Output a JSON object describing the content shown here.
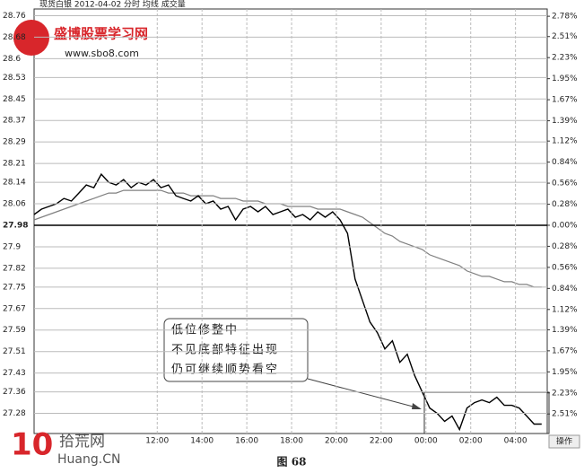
{
  "chart_data": {
    "type": "line",
    "title": "现货白银  2012-04-02 分时 均线 成交量",
    "x": [
      "06:30",
      "06:50",
      "07:10",
      "07:30",
      "07:50",
      "08:10",
      "08:30",
      "08:50",
      "09:10",
      "09:30",
      "09:50",
      "10:10",
      "10:30",
      "10:50",
      "11:10",
      "11:30",
      "11:50",
      "12:10",
      "12:30",
      "12:50",
      "13:10",
      "13:30",
      "13:50",
      "14:10",
      "14:30",
      "14:50",
      "15:10",
      "15:30",
      "15:50",
      "16:10",
      "16:30",
      "16:50",
      "17:10",
      "17:30",
      "17:50",
      "18:10",
      "18:30",
      "18:50",
      "19:10",
      "19:30",
      "19:50",
      "20:10",
      "20:30",
      "20:50",
      "21:10",
      "21:30",
      "21:50",
      "22:10",
      "22:30",
      "22:50",
      "23:10",
      "23:30",
      "23:50",
      "00:10",
      "00:30",
      "00:50",
      "01:10",
      "01:30",
      "01:50",
      "02:10",
      "02:30",
      "02:50",
      "03:10",
      "03:30",
      "03:50",
      "04:10",
      "04:30",
      "04:50",
      "05:10"
    ],
    "series": [
      {
        "color": "#000000",
        "values": [
          28.02,
          28.04,
          28.05,
          28.06,
          28.08,
          28.07,
          28.1,
          28.13,
          28.12,
          28.17,
          28.14,
          28.13,
          28.15,
          28.12,
          28.14,
          28.13,
          28.15,
          28.12,
          28.13,
          28.09,
          28.08,
          28.07,
          28.09,
          28.06,
          28.07,
          28.04,
          28.05,
          28.0,
          28.04,
          28.05,
          28.03,
          28.05,
          28.02,
          28.03,
          28.04,
          28.01,
          28.02,
          28.0,
          28.03,
          28.01,
          28.03,
          28.0,
          27.95,
          27.78,
          27.7,
          27.62,
          27.58,
          27.52,
          27.55,
          27.47,
          27.5,
          27.42,
          27.36,
          27.3,
          27.28,
          27.25,
          27.27,
          27.22,
          27.3,
          27.32,
          27.33,
          27.32,
          27.34,
          27.31,
          27.31,
          27.3,
          27.27,
          27.24,
          27.24
        ]
      },
      {
        "color": "#808080",
        "values": [
          28.0,
          28.01,
          28.02,
          28.03,
          28.04,
          28.05,
          28.06,
          28.07,
          28.08,
          28.09,
          28.1,
          28.1,
          28.11,
          28.11,
          28.11,
          28.11,
          28.11,
          28.11,
          28.1,
          28.1,
          28.1,
          28.09,
          28.09,
          28.09,
          28.09,
          28.08,
          28.08,
          28.08,
          28.07,
          28.07,
          28.07,
          28.06,
          28.06,
          28.06,
          28.05,
          28.05,
          28.05,
          28.05,
          28.04,
          28.04,
          28.04,
          28.04,
          28.03,
          28.02,
          28.01,
          27.99,
          27.97,
          27.95,
          27.94,
          27.92,
          27.91,
          27.9,
          27.89,
          27.87,
          27.86,
          27.85,
          27.84,
          27.83,
          27.81,
          27.8,
          27.79,
          27.79,
          27.78,
          27.77,
          27.77,
          27.76,
          27.76,
          27.75,
          27.75
        ]
      }
    ],
    "xlim": [
      "06:30",
      "05:25"
    ],
    "xticks": [
      "12:00",
      "14:00",
      "16:00",
      "18:00",
      "20:00",
      "22:00",
      "00:00",
      "02:00",
      "04:00"
    ],
    "ylim": [
      27.205,
      28.785
    ],
    "yticks": [
      28.76,
      28.68,
      28.6,
      28.53,
      28.45,
      28.37,
      28.29,
      28.21,
      28.14,
      28.06,
      27.98,
      27.9,
      27.82,
      27.75,
      27.67,
      27.59,
      27.51,
      27.43,
      27.36,
      27.28
    ],
    "y2lim": [
      -2.77,
      2.877
    ],
    "y2ticks": [
      {
        "value": 2.78,
        "label": "2.78%"
      },
      {
        "value": 2.51,
        "label": "2.51%"
      },
      {
        "value": 2.23,
        "label": "2.23%"
      },
      {
        "value": 1.95,
        "label": "1.95%"
      },
      {
        "value": 1.67,
        "label": "1.67%"
      },
      {
        "value": 1.39,
        "label": "1.39%"
      },
      {
        "value": 1.12,
        "label": "1.12%"
      },
      {
        "value": 0.84,
        "label": "0.84%"
      },
      {
        "value": 0.56,
        "label": "0.56%"
      },
      {
        "value": 0.28,
        "label": "0.28%"
      },
      {
        "value": 0,
        "label": "0.00%"
      },
      {
        "value": -0.28,
        "label": "0.28%"
      },
      {
        "value": -0.56,
        "label": "0.56%"
      },
      {
        "value": -0.84,
        "label": "0.84%"
      },
      {
        "value": -1.12,
        "label": "1.12%"
      },
      {
        "value": -1.39,
        "label": "1.39%"
      },
      {
        "value": -1.67,
        "label": "1.67%"
      },
      {
        "value": -1.95,
        "label": "1.95%"
      },
      {
        "value": -2.23,
        "label": "2.23%"
      },
      {
        "value": -2.51,
        "label": "2.51%"
      }
    ],
    "grid": true,
    "annotation": [
      "低位修整中",
      "不见底部特征出现",
      "仍可继续顺势看空"
    ],
    "button": "操作"
  },
  "watermark_top": {
    "name": "盛博股票学习网",
    "url": "www.sbo8.com"
  },
  "watermark_bottom": {
    "name": "拾荒网",
    "url": "Huang.CN"
  },
  "caption": "图 68"
}
